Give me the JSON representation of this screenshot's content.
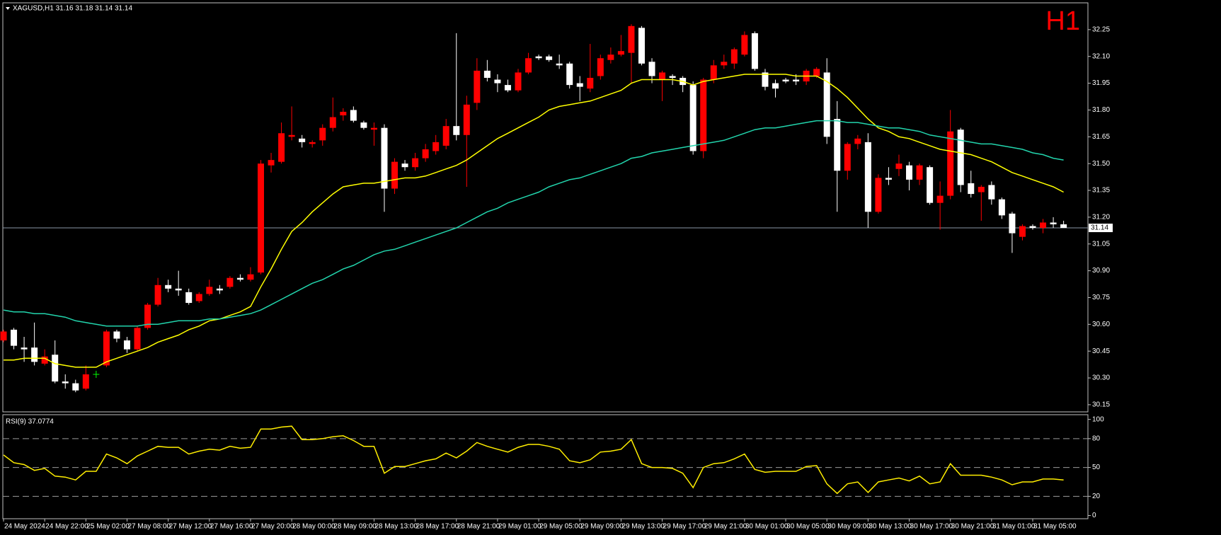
{
  "chart_data": [
    {
      "type": "candlestick",
      "title": "XAGUSD,H1  31.16 31.18 31.14 31.14",
      "badge": "H1",
      "categories": [
        "24 May 2024",
        null,
        null,
        null,
        "24 May 22:00",
        null,
        null,
        null,
        "25 May 02:00",
        null,
        null,
        null,
        "27 May 08:00",
        null,
        null,
        null,
        "27 May 12:00",
        null,
        null,
        null,
        "27 May 16:00",
        null,
        null,
        null,
        "27 May 20:00",
        null,
        null,
        null,
        "28 May 00:00",
        null,
        null,
        null,
        "28 May 09:00",
        null,
        null,
        null,
        "28 May 13:00",
        null,
        null,
        null,
        "28 May 17:00",
        null,
        null,
        null,
        "28 May 21:00",
        null,
        null,
        null,
        "29 May 01:00",
        null,
        null,
        null,
        "29 May 05:00",
        null,
        null,
        null,
        "29 May 09:00",
        null,
        null,
        null,
        "29 May 13:00",
        null,
        null,
        null,
        "29 May 17:00",
        null,
        null,
        null,
        "29 May 21:00",
        null,
        null,
        null,
        "30 May 01:00",
        null,
        null,
        null,
        "30 May 05:00",
        null,
        null,
        null,
        "30 May 09:00",
        null,
        null,
        null,
        "30 May 13:00",
        null,
        null,
        null,
        "30 May 17:00",
        null,
        null,
        null,
        "30 May 21:00",
        null,
        null,
        null,
        "31 May 01:00",
        null,
        null,
        null,
        "31 May 05:00",
        null,
        null,
        null
      ],
      "open": [
        30.51,
        30.57,
        30.47,
        30.47,
        30.38,
        30.43,
        30.28,
        30.27,
        30.24,
        30.32,
        30.37,
        30.56,
        30.51,
        30.46,
        30.58,
        30.71,
        30.82,
        30.8,
        30.78,
        30.73,
        30.77,
        30.8,
        30.81,
        30.86,
        30.85,
        30.89,
        31.49,
        31.51,
        31.65,
        31.64,
        31.61,
        31.63,
        31.7,
        31.77,
        31.8,
        31.73,
        31.69,
        31.7,
        31.36,
        31.5,
        31.48,
        31.53,
        31.57,
        31.6,
        31.71,
        31.66,
        31.84,
        32.02,
        31.97,
        31.94,
        31.91,
        32.01,
        32.1,
        32.1,
        32.06,
        32.06,
        31.95,
        31.92,
        31.99,
        32.08,
        32.11,
        32.12,
        32.26,
        32.07,
        31.97,
        31.99,
        31.98,
        31.94,
        31.57,
        31.97,
        32.05,
        32.06,
        32.11,
        32.23,
        32.01,
        31.95,
        31.97,
        31.97,
        31.96,
        31.99,
        32.01,
        31.75,
        31.46,
        31.61,
        31.62,
        31.23,
        31.42,
        31.47,
        31.49,
        31.41,
        31.48,
        31.28,
        31.32,
        31.69,
        31.39,
        31.34,
        31.38,
        31.3,
        31.22,
        31.09,
        31.15,
        31.14,
        31.17,
        31.16
      ],
      "high": [
        30.57,
        30.58,
        30.53,
        30.61,
        30.46,
        30.51,
        30.32,
        30.29,
        30.37,
        30.34,
        30.57,
        30.57,
        30.53,
        30.59,
        30.72,
        30.86,
        30.85,
        30.9,
        30.8,
        30.78,
        30.85,
        30.82,
        30.87,
        30.88,
        30.92,
        31.52,
        31.56,
        31.73,
        31.82,
        31.66,
        31.63,
        31.72,
        31.87,
        31.81,
        31.82,
        31.74,
        31.73,
        31.72,
        31.53,
        31.52,
        31.56,
        31.61,
        31.66,
        31.75,
        32.23,
        31.88,
        32.09,
        32.08,
        32.0,
        31.97,
        32.03,
        32.12,
        32.11,
        32.11,
        32.11,
        32.07,
        31.99,
        32.17,
        32.11,
        32.15,
        32.22,
        32.28,
        32.27,
        32.09,
        32.02,
        32.0,
        31.99,
        31.96,
        31.98,
        32.08,
        32.11,
        32.15,
        32.24,
        32.24,
        32.03,
        31.97,
        31.98,
        32.0,
        32.03,
        32.04,
        32.09,
        31.85,
        31.62,
        31.66,
        31.67,
        31.44,
        31.48,
        31.55,
        31.51,
        31.5,
        31.49,
        31.4,
        31.8,
        31.7,
        31.46,
        31.38,
        31.4,
        31.31,
        31.23,
        31.16,
        31.16,
        31.19,
        31.2,
        31.18
      ],
      "low": [
        30.5,
        30.46,
        30.39,
        30.37,
        30.37,
        30.27,
        30.24,
        30.22,
        30.23,
        30.3,
        30.36,
        30.5,
        30.44,
        30.45,
        30.57,
        30.7,
        30.78,
        30.76,
        30.71,
        30.72,
        30.76,
        30.77,
        30.8,
        30.84,
        30.84,
        30.88,
        31.45,
        31.5,
        31.63,
        31.59,
        31.59,
        31.6,
        31.68,
        31.74,
        31.73,
        31.69,
        31.6,
        31.23,
        31.33,
        31.46,
        31.46,
        31.51,
        31.55,
        31.58,
        31.63,
        31.37,
        31.8,
        31.96,
        31.9,
        31.9,
        31.9,
        32.0,
        32.08,
        32.07,
        32.03,
        31.92,
        31.85,
        31.9,
        31.97,
        32.06,
        32.1,
        31.95,
        32.05,
        31.95,
        31.85,
        31.94,
        31.9,
        31.55,
        31.53,
        31.95,
        32.03,
        32.03,
        32.1,
        32.02,
        31.91,
        31.87,
        31.95,
        31.94,
        31.94,
        31.98,
        31.61,
        31.23,
        31.41,
        31.58,
        31.14,
        31.22,
        31.38,
        31.43,
        31.35,
        31.38,
        31.27,
        31.13,
        31.3,
        31.34,
        31.31,
        31.18,
        31.27,
        31.19,
        31.0,
        31.07,
        31.13,
        31.11,
        31.14,
        31.14
      ],
      "close": [
        30.56,
        30.48,
        30.46,
        30.39,
        30.42,
        30.28,
        30.27,
        30.23,
        30.32,
        30.32,
        30.56,
        30.52,
        30.46,
        30.58,
        30.71,
        30.82,
        30.8,
        30.79,
        30.72,
        30.77,
        30.81,
        30.79,
        30.86,
        30.85,
        30.88,
        31.5,
        31.52,
        31.67,
        31.66,
        31.62,
        31.62,
        31.7,
        31.76,
        31.79,
        31.74,
        31.7,
        31.7,
        31.36,
        31.51,
        31.48,
        31.53,
        31.58,
        31.62,
        31.71,
        31.66,
        31.83,
        32.02,
        31.98,
        31.95,
        31.91,
        32.01,
        32.09,
        32.09,
        32.08,
        32.05,
        31.94,
        31.93,
        31.98,
        32.09,
        32.11,
        32.13,
        32.27,
        32.06,
        31.99,
        32.01,
        31.98,
        31.94,
        31.57,
        31.97,
        32.05,
        32.07,
        32.14,
        32.22,
        32.03,
        31.93,
        31.92,
        31.96,
        31.96,
        32.02,
        32.03,
        31.65,
        31.46,
        31.61,
        31.64,
        31.23,
        31.42,
        31.41,
        31.5,
        31.41,
        31.49,
        31.28,
        31.32,
        31.68,
        31.38,
        31.33,
        31.37,
        31.3,
        31.21,
        31.11,
        31.15,
        31.14,
        31.17,
        31.16,
        31.14
      ],
      "up_color": "#ff0000",
      "down_color": "#ffffff",
      "doji_color": "#00ff00",
      "overlays": [
        {
          "color": "#ffff00",
          "values": [
            30.4,
            30.4,
            30.41,
            30.41,
            30.41,
            30.38,
            30.37,
            30.36,
            30.36,
            30.36,
            30.39,
            30.41,
            30.43,
            30.45,
            30.47,
            30.5,
            30.52,
            30.54,
            30.57,
            30.59,
            30.62,
            30.63,
            30.65,
            30.67,
            30.7,
            30.81,
            30.91,
            31.02,
            31.12,
            31.17,
            31.23,
            31.28,
            31.33,
            31.37,
            31.38,
            31.39,
            31.39,
            31.4,
            31.41,
            31.42,
            31.42,
            31.43,
            31.45,
            31.47,
            31.49,
            31.52,
            31.56,
            31.6,
            31.64,
            31.67,
            31.7,
            31.73,
            31.76,
            31.8,
            31.82,
            31.83,
            31.84,
            31.85,
            31.87,
            31.89,
            31.91,
            31.95,
            31.97,
            31.97,
            31.97,
            31.97,
            31.96,
            31.94,
            31.96,
            31.97,
            31.98,
            31.99,
            32.0,
            32.0,
            32.0,
            32.0,
            32.0,
            31.99,
            31.99,
            31.99,
            31.96,
            31.92,
            31.87,
            31.81,
            31.75,
            31.7,
            31.68,
            31.65,
            31.64,
            31.62,
            31.6,
            31.58,
            31.57,
            31.56,
            31.55,
            31.53,
            31.51,
            31.48,
            31.45,
            31.43,
            31.41,
            31.39,
            31.37,
            31.34
          ]
        },
        {
          "color": "#22d4ac",
          "values": [
            30.68,
            30.67,
            30.67,
            30.66,
            30.66,
            30.65,
            30.64,
            30.62,
            30.61,
            30.6,
            30.59,
            30.59,
            30.59,
            30.59,
            30.6,
            30.6,
            30.61,
            30.62,
            30.62,
            30.62,
            30.63,
            30.63,
            30.64,
            30.65,
            30.66,
            30.68,
            30.71,
            30.74,
            30.77,
            30.8,
            30.83,
            30.85,
            30.88,
            30.91,
            30.93,
            30.96,
            30.99,
            31.01,
            31.02,
            31.04,
            31.06,
            31.08,
            31.1,
            31.12,
            31.14,
            31.17,
            31.2,
            31.23,
            31.25,
            31.28,
            31.3,
            31.32,
            31.34,
            31.37,
            31.39,
            31.41,
            31.42,
            31.44,
            31.46,
            31.48,
            31.5,
            31.53,
            31.54,
            31.56,
            31.57,
            31.58,
            31.59,
            31.6,
            31.61,
            31.62,
            31.63,
            31.65,
            31.67,
            31.69,
            31.7,
            31.7,
            31.71,
            31.72,
            31.73,
            31.74,
            31.74,
            31.74,
            31.73,
            31.73,
            31.72,
            31.71,
            31.7,
            31.7,
            31.69,
            31.68,
            31.66,
            31.65,
            31.64,
            31.63,
            31.62,
            31.61,
            31.61,
            31.6,
            31.59,
            31.58,
            31.56,
            31.55,
            31.53,
            31.52
          ]
        }
      ],
      "current_price": 31.14,
      "price_line_color": "#8a96a6",
      "ylim": [
        30.11,
        32.4
      ],
      "yticks": [
        {
          "value": 30.15,
          "label": "30.15"
        },
        {
          "value": 30.3,
          "label": "30.30"
        },
        {
          "value": 30.45,
          "label": "30.45"
        },
        {
          "value": 30.6,
          "label": "30.60"
        },
        {
          "value": 30.75,
          "label": "30.75"
        },
        {
          "value": 30.9,
          "label": "30.90"
        },
        {
          "value": 31.05,
          "label": "31.05"
        },
        {
          "value": 31.2,
          "label": "31.20"
        },
        {
          "value": 31.35,
          "label": "31.35"
        },
        {
          "value": 31.5,
          "label": "31.50"
        },
        {
          "value": 31.65,
          "label": "31.65"
        },
        {
          "value": 31.8,
          "label": "31.80"
        },
        {
          "value": 31.95,
          "label": "31.95"
        },
        {
          "value": 32.1,
          "label": "32.10"
        },
        {
          "value": 32.25,
          "label": "32.25"
        }
      ],
      "grid": false
    },
    {
      "type": "line",
      "title": "RSI(9) 37.0774",
      "color": "#ffee00",
      "values": [
        63,
        55,
        53,
        47,
        49,
        41,
        40,
        37,
        46,
        46,
        64,
        60,
        54,
        62,
        67,
        72,
        71,
        71,
        64,
        67,
        69,
        68,
        72,
        70,
        71,
        90,
        90,
        92,
        93,
        79,
        79,
        80,
        82,
        83,
        78,
        72,
        72,
        44,
        51,
        51,
        54,
        57,
        59,
        65,
        60,
        67,
        76,
        72,
        69,
        66,
        71,
        74,
        74,
        72,
        69,
        57,
        55,
        58,
        66,
        67,
        69,
        79,
        54,
        50,
        50,
        49,
        44,
        29,
        50,
        54,
        55,
        59,
        64,
        48,
        45,
        46,
        46,
        46,
        51,
        52,
        33,
        23,
        33,
        35,
        24,
        35,
        37,
        39,
        36,
        41,
        33,
        35,
        54,
        42,
        42,
        42,
        40,
        37,
        32,
        35,
        35,
        38,
        38,
        37
      ],
      "ylim": [
        -3.3,
        104.9
      ],
      "yticks": [
        0,
        20,
        50,
        80,
        100
      ],
      "levels": [
        20,
        50,
        80
      ],
      "grid": false
    }
  ]
}
